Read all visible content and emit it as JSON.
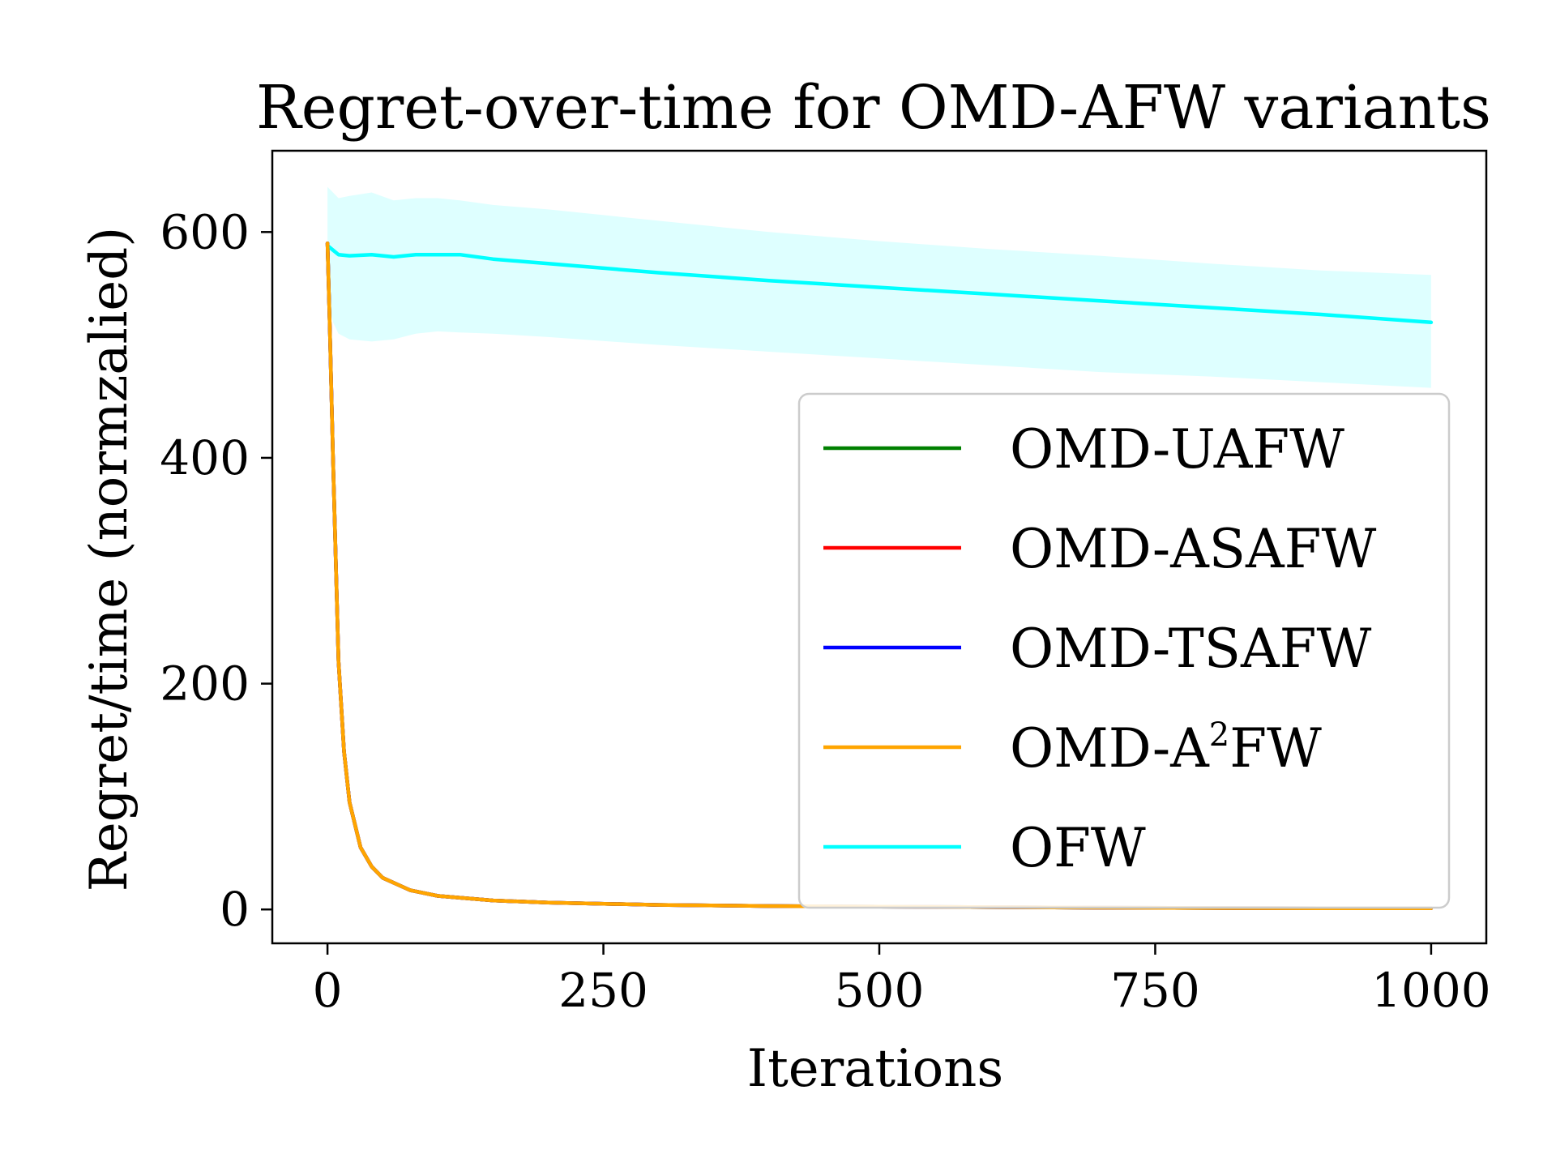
{
  "chart_data": {
    "type": "line",
    "title": "Regret-over-time for OMD-AFW variants",
    "xlabel": "Iterations",
    "ylabel": "Regret/time (normzalied)",
    "xlim": [
      -50,
      1050
    ],
    "ylim": [
      -30,
      672
    ],
    "x_ticks": [
      0,
      250,
      500,
      750,
      1000
    ],
    "x_tick_labels": [
      "0",
      "250",
      "500",
      "750",
      "1000"
    ],
    "y_ticks": [
      0,
      200,
      400,
      600
    ],
    "y_tick_labels": [
      "0",
      "200",
      "400",
      "600"
    ],
    "grid": false,
    "legend_position": "lower-right",
    "series": [
      {
        "name": "OMD-UAFW",
        "color": "#008000",
        "x": [
          0,
          2,
          5,
          10,
          15,
          20,
          30,
          40,
          50,
          75,
          100,
          150,
          200,
          300,
          400,
          500,
          600,
          700,
          800,
          900,
          1000
        ],
        "y": [
          590,
          520,
          400,
          220,
          140,
          95,
          55,
          38,
          28,
          17,
          12,
          8,
          6,
          4,
          3,
          2.5,
          2,
          1.6,
          1.3,
          1.1,
          1
        ]
      },
      {
        "name": "OMD-ASAFW",
        "color": "#ff0000",
        "x": [
          0,
          2,
          5,
          10,
          15,
          20,
          30,
          40,
          50,
          75,
          100,
          150,
          200,
          300,
          400,
          500,
          600,
          700,
          800,
          900,
          1000
        ],
        "y": [
          590,
          520,
          400,
          220,
          140,
          95,
          55,
          38,
          28,
          17,
          12,
          8,
          6,
          4,
          3,
          2.5,
          2,
          1.6,
          1.3,
          1.1,
          1
        ]
      },
      {
        "name": "OMD-TSAFW",
        "color": "#0000ff",
        "x": [
          0,
          2,
          5,
          10,
          15,
          20,
          30,
          40,
          50,
          75,
          100,
          150,
          200,
          300,
          400,
          500,
          600,
          700,
          800,
          900,
          1000
        ],
        "y": [
          590,
          520,
          400,
          220,
          140,
          95,
          55,
          38,
          28,
          17,
          12,
          8,
          6,
          4,
          3,
          2.5,
          2,
          1.6,
          1.3,
          1.1,
          1
        ]
      },
      {
        "name": "OMD-A²FW",
        "color": "#ffa500",
        "x": [
          0,
          2,
          5,
          10,
          15,
          20,
          30,
          40,
          50,
          75,
          100,
          150,
          200,
          300,
          400,
          500,
          600,
          700,
          800,
          900,
          1000
        ],
        "y": [
          590,
          520,
          400,
          220,
          140,
          95,
          55,
          38,
          28,
          17,
          12,
          8,
          6,
          4,
          3,
          2.5,
          2,
          1.6,
          1.3,
          1.1,
          1
        ]
      },
      {
        "name": "OFW",
        "color": "#00ffff",
        "x": [
          0,
          5,
          10,
          20,
          40,
          60,
          80,
          100,
          120,
          150,
          200,
          300,
          400,
          500,
          600,
          700,
          800,
          900,
          1000
        ],
        "y": [
          588,
          584,
          580,
          579,
          580,
          578,
          580,
          580,
          580,
          576,
          572,
          564,
          557,
          551,
          545,
          539,
          533,
          527,
          520
        ],
        "band_upper": [
          640,
          635,
          630,
          632,
          635,
          628,
          630,
          630,
          628,
          624,
          620,
          610,
          600,
          592,
          585,
          579,
          572,
          566,
          562
        ],
        "band_lower": [
          540,
          520,
          510,
          505,
          503,
          505,
          510,
          512,
          511,
          510,
          507,
          500,
          494,
          488,
          482,
          476,
          472,
          467,
          462
        ]
      }
    ]
  }
}
